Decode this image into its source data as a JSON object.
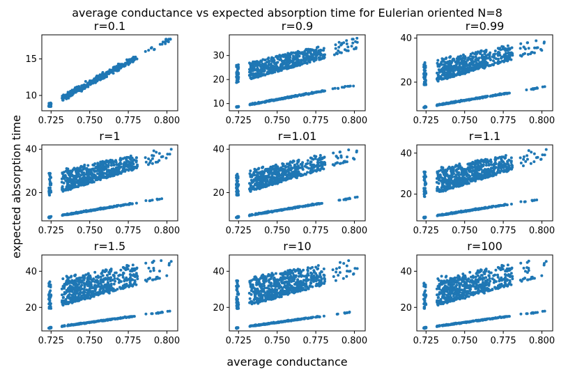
{
  "figure": {
    "suptitle": "average conductance vs expected absorption time for Eulerian oriented N=8",
    "xlabel": "average conductance",
    "ylabel": "expected absorption time"
  },
  "colors": {
    "series": "#1f77b4",
    "axes": "#000000",
    "background": "#ffffff"
  },
  "chart_data": [
    {
      "type": "scatter",
      "title": "r=0.1",
      "xlim": [
        0.719,
        0.807
      ],
      "ylim": [
        7.9,
        18.3
      ],
      "xticks": [
        0.725,
        0.75,
        0.775,
        0.8
      ],
      "xticklabels": [
        "0.725",
        "0.750",
        "0.775",
        "0.800"
      ],
      "yticks": [
        10,
        15
      ],
      "yticklabels": [
        "10",
        "15"
      ],
      "series": [
        {
          "shape": "single_band",
          "x_range": [
            0.723,
            0.803
          ],
          "y_at_x_start": 8.5,
          "y_at_x_end": 17.9,
          "spread": 0.6
        }
      ]
    },
    {
      "type": "scatter",
      "title": "r=0.9",
      "xlim": [
        0.719,
        0.807
      ],
      "ylim": [
        7.0,
        38.6
      ],
      "xticks": [
        0.725,
        0.75,
        0.775,
        0.8
      ],
      "xticklabels": [
        "0.725",
        "0.750",
        "0.775",
        "0.800"
      ],
      "yticks": [
        10,
        20,
        30
      ],
      "yticklabels": [
        "10",
        "20",
        "30"
      ],
      "series": [
        {
          "shape": "two_bands",
          "x_range": [
            0.723,
            0.803
          ],
          "lower_band": [
            8.5,
            18.0
          ],
          "upper_band_start": [
            18.5,
            26.0
          ],
          "upper_band_end": [
            33.0,
            37.5
          ],
          "spread": 1.2
        }
      ]
    },
    {
      "type": "scatter",
      "title": "r=0.99",
      "xlim": [
        0.719,
        0.807
      ],
      "ylim": [
        7.0,
        41.5
      ],
      "xticks": [
        0.725,
        0.75,
        0.775,
        0.8
      ],
      "xticklabels": [
        "0.725",
        "0.750",
        "0.775",
        "0.800"
      ],
      "yticks": [
        20,
        40
      ],
      "yticklabels": [
        "20",
        "40"
      ],
      "series": [
        {
          "shape": "two_bands",
          "x_range": [
            0.723,
            0.803
          ],
          "lower_band": [
            8.5,
            18.0
          ],
          "upper_band_start": [
            18.5,
            29.0
          ],
          "upper_band_end": [
            35.0,
            40.0
          ],
          "spread": 1.5
        }
      ]
    },
    {
      "type": "scatter",
      "title": "r=1",
      "xlim": [
        0.719,
        0.807
      ],
      "ylim": [
        7.0,
        42.0
      ],
      "xticks": [
        0.725,
        0.75,
        0.775,
        0.8
      ],
      "xticklabels": [
        "0.725",
        "0.750",
        "0.775",
        "0.800"
      ],
      "yticks": [
        20,
        40
      ],
      "yticklabels": [
        "20",
        "40"
      ],
      "series": [
        {
          "shape": "two_bands",
          "x_range": [
            0.723,
            0.803
          ],
          "lower_band": [
            8.5,
            18.0
          ],
          "upper_band_start": [
            18.5,
            29.0
          ],
          "upper_band_end": [
            36.0,
            41.0
          ],
          "spread": 1.6
        }
      ]
    },
    {
      "type": "scatter",
      "title": "r=1.01",
      "xlim": [
        0.719,
        0.807
      ],
      "ylim": [
        7.0,
        42.0
      ],
      "xticks": [
        0.725,
        0.75,
        0.775,
        0.8
      ],
      "xticklabels": [
        "0.725",
        "0.750",
        "0.775",
        "0.800"
      ],
      "yticks": [
        20,
        40
      ],
      "yticklabels": [
        "20",
        "40"
      ],
      "series": [
        {
          "shape": "two_bands",
          "x_range": [
            0.723,
            0.803
          ],
          "lower_band": [
            8.5,
            18.0
          ],
          "upper_band_start": [
            18.5,
            29.0
          ],
          "upper_band_end": [
            36.0,
            41.0
          ],
          "spread": 1.6
        }
      ]
    },
    {
      "type": "scatter",
      "title": "r=1.1",
      "xlim": [
        0.719,
        0.807
      ],
      "ylim": [
        7.0,
        44.0
      ],
      "xticks": [
        0.725,
        0.75,
        0.775,
        0.8
      ],
      "xticklabels": [
        "0.725",
        "0.750",
        "0.775",
        "0.800"
      ],
      "yticks": [
        20,
        40
      ],
      "yticklabels": [
        "20",
        "40"
      ],
      "series": [
        {
          "shape": "two_bands",
          "x_range": [
            0.723,
            0.803
          ],
          "lower_band": [
            8.5,
            18.0
          ],
          "upper_band_start": [
            18.5,
            31.0
          ],
          "upper_band_end": [
            37.0,
            43.0
          ],
          "spread": 1.8
        }
      ]
    },
    {
      "type": "scatter",
      "title": "r=1.5",
      "xlim": [
        0.719,
        0.807
      ],
      "ylim": [
        7.0,
        49.0
      ],
      "xticks": [
        0.725,
        0.75,
        0.775,
        0.8
      ],
      "xticklabels": [
        "0.725",
        "0.750",
        "0.775",
        "0.800"
      ],
      "yticks": [
        20,
        40
      ],
      "yticklabels": [
        "20",
        "40"
      ],
      "series": [
        {
          "shape": "two_bands",
          "x_range": [
            0.723,
            0.803
          ],
          "lower_band": [
            8.5,
            18.0
          ],
          "upper_band_start": [
            19.0,
            35.0
          ],
          "upper_band_end": [
            38.0,
            47.5
          ],
          "spread": 2.2
        }
      ]
    },
    {
      "type": "scatter",
      "title": "r=10",
      "xlim": [
        0.719,
        0.807
      ],
      "ylim": [
        7.0,
        49.0
      ],
      "xticks": [
        0.725,
        0.75,
        0.775,
        0.8
      ],
      "xticklabels": [
        "0.725",
        "0.750",
        "0.775",
        "0.800"
      ],
      "yticks": [
        20,
        40
      ],
      "yticklabels": [
        "20",
        "40"
      ],
      "series": [
        {
          "shape": "two_bands",
          "x_range": [
            0.723,
            0.803
          ],
          "lower_band": [
            8.5,
            18.0
          ],
          "upper_band_start": [
            19.0,
            35.0
          ],
          "upper_band_end": [
            38.0,
            47.5
          ],
          "spread": 2.2
        }
      ]
    },
    {
      "type": "scatter",
      "title": "r=100",
      "xlim": [
        0.719,
        0.807
      ],
      "ylim": [
        7.0,
        49.0
      ],
      "xticks": [
        0.725,
        0.75,
        0.775,
        0.8
      ],
      "xticklabels": [
        "0.725",
        "0.750",
        "0.775",
        "0.800"
      ],
      "yticks": [
        20,
        40
      ],
      "yticklabels": [
        "20",
        "40"
      ],
      "series": [
        {
          "shape": "two_bands",
          "x_range": [
            0.723,
            0.803
          ],
          "lower_band": [
            8.5,
            18.0
          ],
          "upper_band_start": [
            19.0,
            35.0
          ],
          "upper_band_end": [
            38.0,
            47.5
          ],
          "spread": 2.2
        }
      ]
    }
  ]
}
